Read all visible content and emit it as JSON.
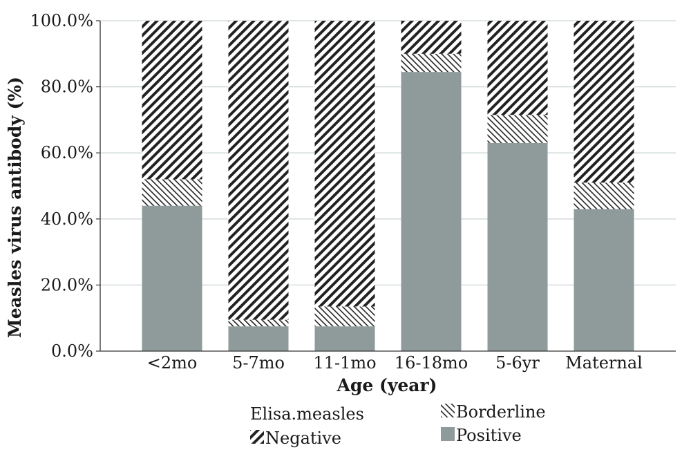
{
  "chart_data": {
    "type": "bar",
    "stacked": true,
    "percent_stacked": true,
    "title": "",
    "xlabel": "Age (year)",
    "ylabel": "Measles virus antibody (%)",
    "ylim": [
      0,
      100
    ],
    "y_ticks": [
      "0.0%",
      "20.0%",
      "40.0%",
      "60.0%",
      "80.0%",
      "100.0%"
    ],
    "grid": "horizontal",
    "categories": [
      "<2mo",
      "5-7mo",
      "11-1mo",
      "16-18mo",
      "5-6yr",
      "Maternal"
    ],
    "series": [
      {
        "name": "Positive",
        "values": [
          44.0,
          7.5,
          7.5,
          84.5,
          63.0,
          43.0
        ]
      },
      {
        "name": "Borderline",
        "values": [
          8.0,
          2.0,
          6.0,
          5.5,
          8.5,
          8.0
        ]
      },
      {
        "name": "Negative",
        "values": [
          48.0,
          90.5,
          86.5,
          10.0,
          28.5,
          49.0
        ]
      }
    ],
    "legend": {
      "title": "Elisa.measles",
      "placement": "bottom",
      "entries": [
        "Negative",
        "Borderline",
        "Positive"
      ]
    },
    "colors": {
      "positive": "#8f9a9a",
      "borderline_pattern": "sparse diagonal hatch",
      "negative_pattern": "dense diagonal hatch",
      "hatch_ink": "#222222",
      "grid": "#cdd6d6"
    }
  }
}
